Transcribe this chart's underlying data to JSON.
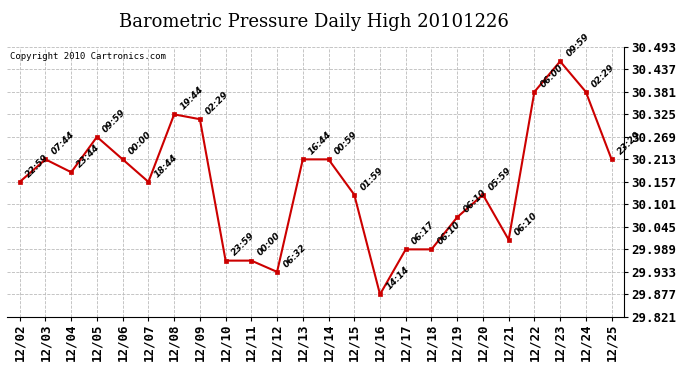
{
  "title": "Barometric Pressure Daily High 20101226",
  "copyright": "Copyright 2010 Cartronics.com",
  "x_labels": [
    "12/02",
    "12/03",
    "12/04",
    "12/05",
    "12/06",
    "12/07",
    "12/08",
    "12/09",
    "12/10",
    "12/11",
    "12/12",
    "12/13",
    "12/14",
    "12/15",
    "12/16",
    "12/17",
    "12/18",
    "12/19",
    "12/20",
    "12/21",
    "12/22",
    "12/23",
    "12/24",
    "12/25"
  ],
  "x_indices": [
    0,
    1,
    2,
    3,
    4,
    5,
    6,
    7,
    8,
    9,
    10,
    11,
    12,
    13,
    14,
    15,
    16,
    17,
    18,
    19,
    20,
    21,
    22,
    23
  ],
  "y_values": [
    30.157,
    30.213,
    30.181,
    30.269,
    30.213,
    30.157,
    30.325,
    30.313,
    29.961,
    29.961,
    29.933,
    30.213,
    30.213,
    30.125,
    29.877,
    29.989,
    29.989,
    30.069,
    30.125,
    30.013,
    30.381,
    30.457,
    30.381,
    30.213
  ],
  "point_labels": [
    "22:59",
    "07:44",
    "23:44",
    "09:59",
    "00:00",
    "18:44",
    "19:44",
    "02:29",
    "23:59",
    "00:00",
    "06:32",
    "16:44",
    "00:59",
    "01:59",
    "14:14",
    "06:17",
    "06:10",
    "06:10",
    "05:59",
    "06:10",
    "06:00",
    "09:59",
    "02:29",
    "23:29"
  ],
  "ylim_min": 29.821,
  "ylim_max": 30.493,
  "y_ticks": [
    29.821,
    29.877,
    29.933,
    29.989,
    30.045,
    30.101,
    30.157,
    30.213,
    30.269,
    30.325,
    30.381,
    30.437,
    30.493
  ],
  "line_color": "#cc0000",
  "marker_color": "#cc0000",
  "bg_color": "#ffffff",
  "grid_color": "#bbbbbb",
  "title_fontsize": 13,
  "tick_fontsize": 9,
  "point_label_fontsize": 6.5
}
